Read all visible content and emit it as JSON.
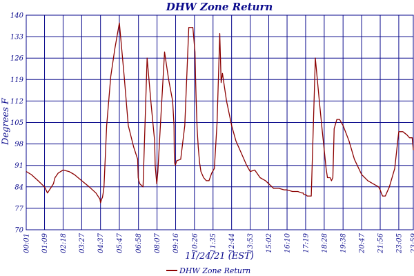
{
  "chart_data": {
    "type": "line",
    "title": "DHW Zone Return",
    "xlabel": "11/24/21 (EST)",
    "ylabel": "Degrees F",
    "ylim": [
      70,
      140
    ],
    "yticks": [
      70,
      77,
      84,
      91,
      98,
      105,
      112,
      119,
      126,
      133,
      140
    ],
    "xlim": [
      "00:01",
      "23:59"
    ],
    "xticks": [
      "00:01",
      "01:09",
      "02:18",
      "03:27",
      "04:37",
      "05:47",
      "06:58",
      "08:07",
      "09:16",
      "10:26",
      "11:35",
      "12:44",
      "13:53",
      "15:02",
      "16:10",
      "17:19",
      "18:28",
      "19:38",
      "20:47",
      "21:56",
      "23:05",
      "23:59"
    ],
    "grid": true,
    "legend_position": "bottom",
    "series": [
      {
        "name": "DHW Zone Return",
        "color": "#8b0000",
        "x": [
          "00:01",
          "00:20",
          "00:45",
          "01:09",
          "01:20",
          "01:42",
          "01:48",
          "02:00",
          "02:18",
          "02:40",
          "03:00",
          "03:27",
          "03:55",
          "04:20",
          "04:35",
          "04:37",
          "04:41",
          "04:44",
          "04:46",
          "04:50",
          "05:00",
          "05:15",
          "05:30",
          "05:47",
          "06:05",
          "06:20",
          "06:40",
          "06:55",
          "06:56",
          "06:57",
          "06:59",
          "07:03",
          "07:15",
          "07:30",
          "07:45",
          "07:58",
          "07:59",
          "08:00",
          "08:03",
          "08:06",
          "08:10",
          "08:20",
          "08:35",
          "08:50",
          "09:05",
          "09:10",
          "09:11",
          "09:12",
          "09:15",
          "09:20",
          "09:35",
          "09:50",
          "10:05",
          "10:20",
          "10:28",
          "10:30",
          "10:32",
          "10:36",
          "10:40",
          "10:45",
          "10:50",
          "11:00",
          "11:10",
          "11:20",
          "11:30",
          "11:40",
          "11:50",
          "12:00",
          "12:05",
          "12:10",
          "12:25",
          "12:44",
          "13:00",
          "13:20",
          "13:40",
          "13:53",
          "14:10",
          "14:30",
          "14:50",
          "15:02",
          "15:20",
          "15:40",
          "16:00",
          "16:10",
          "16:30",
          "16:50",
          "17:05",
          "17:10",
          "17:12",
          "17:19",
          "17:25",
          "17:40",
          "17:55",
          "18:10",
          "18:20",
          "18:28",
          "18:35",
          "18:40",
          "18:50",
          "18:55",
          "19:00",
          "19:05",
          "19:15",
          "19:25",
          "19:38",
          "20:00",
          "20:20",
          "20:47",
          "21:10",
          "21:30",
          "21:50",
          "21:56",
          "22:00",
          "22:05",
          "22:15",
          "22:30",
          "22:50",
          "23:05",
          "23:20",
          "23:35",
          "23:45",
          "23:55",
          "23:59"
        ],
        "y": [
          89,
          88,
          86,
          84,
          82,
          85,
          87,
          88.5,
          89.5,
          89,
          88,
          86,
          84,
          82,
          80,
          78.8,
          80,
          80.5,
          81.5,
          84,
          104,
          120,
          129,
          137.5,
          120,
          104,
          97,
          93,
          90,
          87,
          86,
          85,
          84,
          126,
          111,
          99,
          95,
          91,
          88,
          85,
          89,
          105,
          128,
          119,
          112,
          104,
          95,
          92,
          91,
          92.5,
          93,
          104,
          136,
          136,
          128,
          120,
          113,
          103,
          97,
          92,
          89,
          87,
          86,
          86,
          88.5,
          90,
          105,
          134,
          118,
          121,
          112,
          104,
          99,
          95,
          91,
          89,
          89.5,
          87,
          86,
          85,
          83.5,
          83.5,
          83,
          83,
          82.5,
          82.5,
          82,
          82,
          81.5,
          81.5,
          81,
          81,
          126,
          112,
          103,
          96,
          90,
          87,
          87,
          86,
          87,
          103,
          106,
          106,
          104,
          99,
          93,
          88,
          86,
          85,
          84,
          83,
          82,
          81,
          81,
          84,
          90,
          102,
          102,
          101,
          100,
          100,
          96
        ]
      }
    ]
  }
}
